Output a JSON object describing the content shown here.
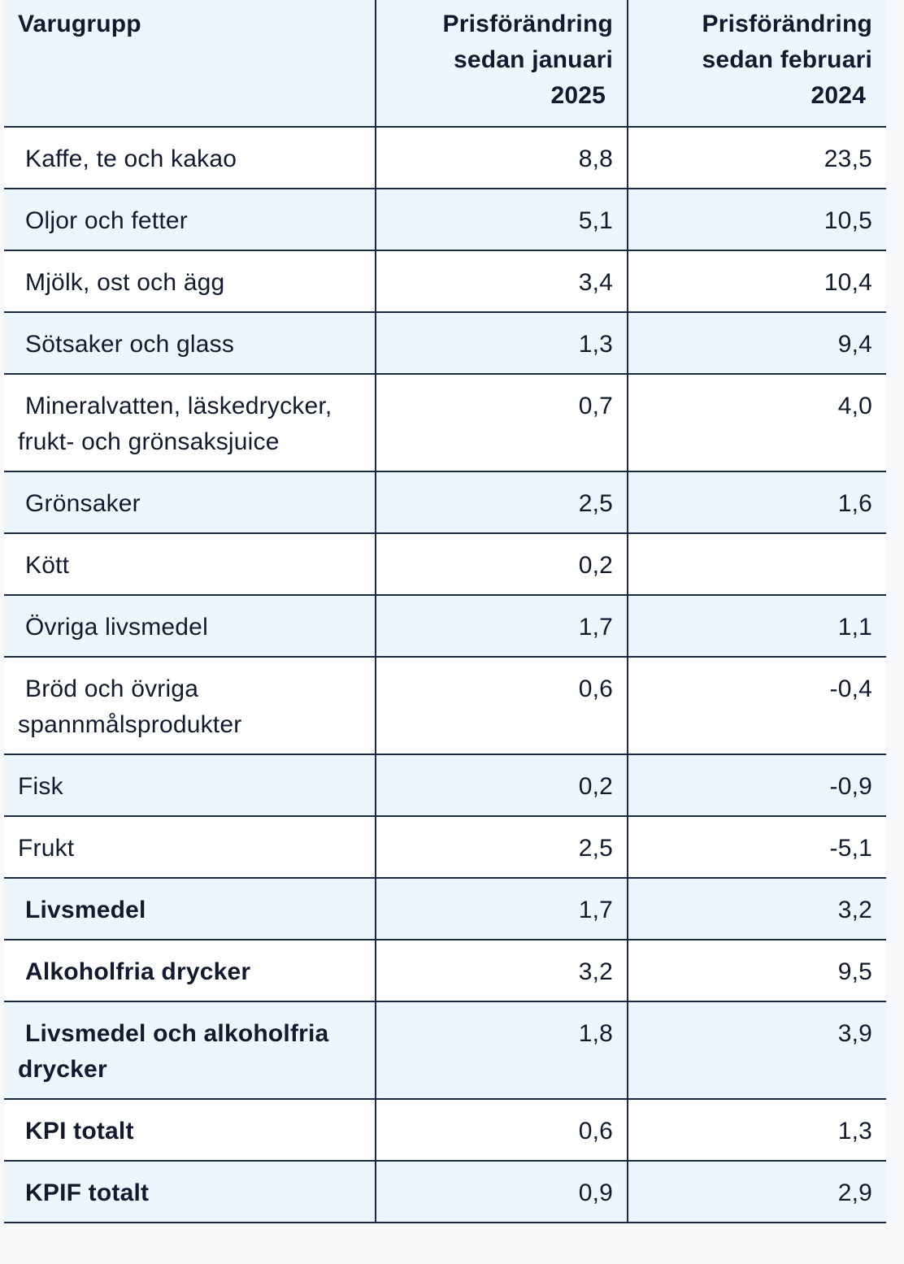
{
  "table": {
    "headers": {
      "group": "Varugrupp",
      "jan_line1": "Prisförändring",
      "jan_line2": "sedan januari",
      "jan_line3": "2025",
      "feb_line1": "Prisförändring",
      "feb_line2": "sedan februari",
      "feb_line3": "2024"
    },
    "rows": [
      {
        "label_line1": "Kaffe, te och kakao",
        "label_line2": "",
        "jan": "8,8",
        "feb": "23,5",
        "bold": false,
        "indent": true
      },
      {
        "label_line1": "Oljor och fetter",
        "label_line2": "",
        "jan": "5,1",
        "feb": "10,5",
        "bold": false,
        "indent": true
      },
      {
        "label_line1": "Mjölk, ost och ägg",
        "label_line2": "",
        "jan": "3,4",
        "feb": "10,4",
        "bold": false,
        "indent": true
      },
      {
        "label_line1": "Sötsaker och glass",
        "label_line2": "",
        "jan": "1,3",
        "feb": "9,4",
        "bold": false,
        "indent": true
      },
      {
        "label_line1": "Mineralvatten, läskedrycker,",
        "label_line2": "frukt- och grönsaksjuice",
        "jan": "0,7",
        "feb": "4,0",
        "bold": false,
        "indent": true
      },
      {
        "label_line1": "Grönsaker",
        "label_line2": "",
        "jan": "2,5",
        "feb": "1,6",
        "bold": false,
        "indent": true
      },
      {
        "label_line1": "Kött",
        "label_line2": "",
        "jan": "0,2",
        "feb": "",
        "bold": false,
        "indent": true
      },
      {
        "label_line1": "Övriga livsmedel",
        "label_line2": "",
        "jan": "1,7",
        "feb": "1,1",
        "bold": false,
        "indent": true
      },
      {
        "label_line1": "Bröd och övriga",
        "label_line2": "spannmålsprodukter",
        "jan": "0,6",
        "feb": "-0,4",
        "bold": false,
        "indent": true
      },
      {
        "label_line1": "Fisk",
        "label_line2": "",
        "jan": "0,2",
        "feb": "-0,9",
        "bold": false,
        "indent": false
      },
      {
        "label_line1": "Frukt",
        "label_line2": "",
        "jan": "2,5",
        "feb": "-5,1",
        "bold": false,
        "indent": false
      },
      {
        "label_line1": "Livsmedel",
        "label_line2": "",
        "jan": "1,7",
        "feb": "3,2",
        "bold": true,
        "indent": true
      },
      {
        "label_line1": "Alkoholfria drycker",
        "label_line2": "",
        "jan": "3,2",
        "feb": "9,5",
        "bold": true,
        "indent": true
      },
      {
        "label_line1": "Livsmedel och alkoholfria",
        "label_line2": "drycker",
        "jan": "1,8",
        "feb": "3,9",
        "bold": true,
        "indent": true
      },
      {
        "label_line1": "KPI totalt",
        "label_line2": "",
        "jan": "0,6",
        "feb": "1,3",
        "bold": true,
        "indent": true
      },
      {
        "label_line1": "KPIF totalt",
        "label_line2": "",
        "jan": "0,9",
        "feb": "2,9",
        "bold": true,
        "indent": true
      }
    ]
  },
  "colors": {
    "header_bg": "#eef6fd",
    "stripe_bg": "#eef6fd",
    "border": "#1b2a4a",
    "text": "#111a2e"
  }
}
